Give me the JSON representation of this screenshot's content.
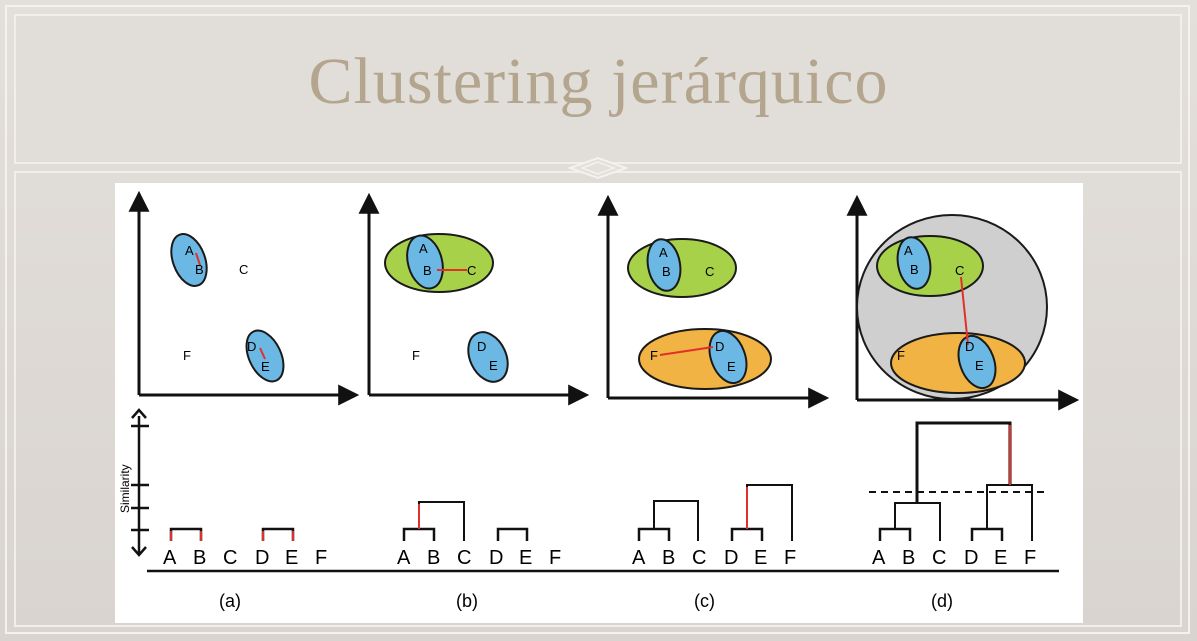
{
  "slide": {
    "title": "Clustering jerárquico"
  },
  "diagram": {
    "y_axis_label": "Similarity",
    "points": [
      "A",
      "B",
      "C",
      "D",
      "E",
      "F"
    ],
    "panel_labels": [
      "(a)",
      "(b)",
      "(c)",
      "(d)"
    ],
    "colors": {
      "title": "#b4a58e",
      "cluster_blue": "#6cb8e4",
      "cluster_green": "#a8d14a",
      "cluster_orange": "#f1b343",
      "cluster_gray": "#cfcfcf",
      "link_red": "#e0302c"
    }
  }
}
